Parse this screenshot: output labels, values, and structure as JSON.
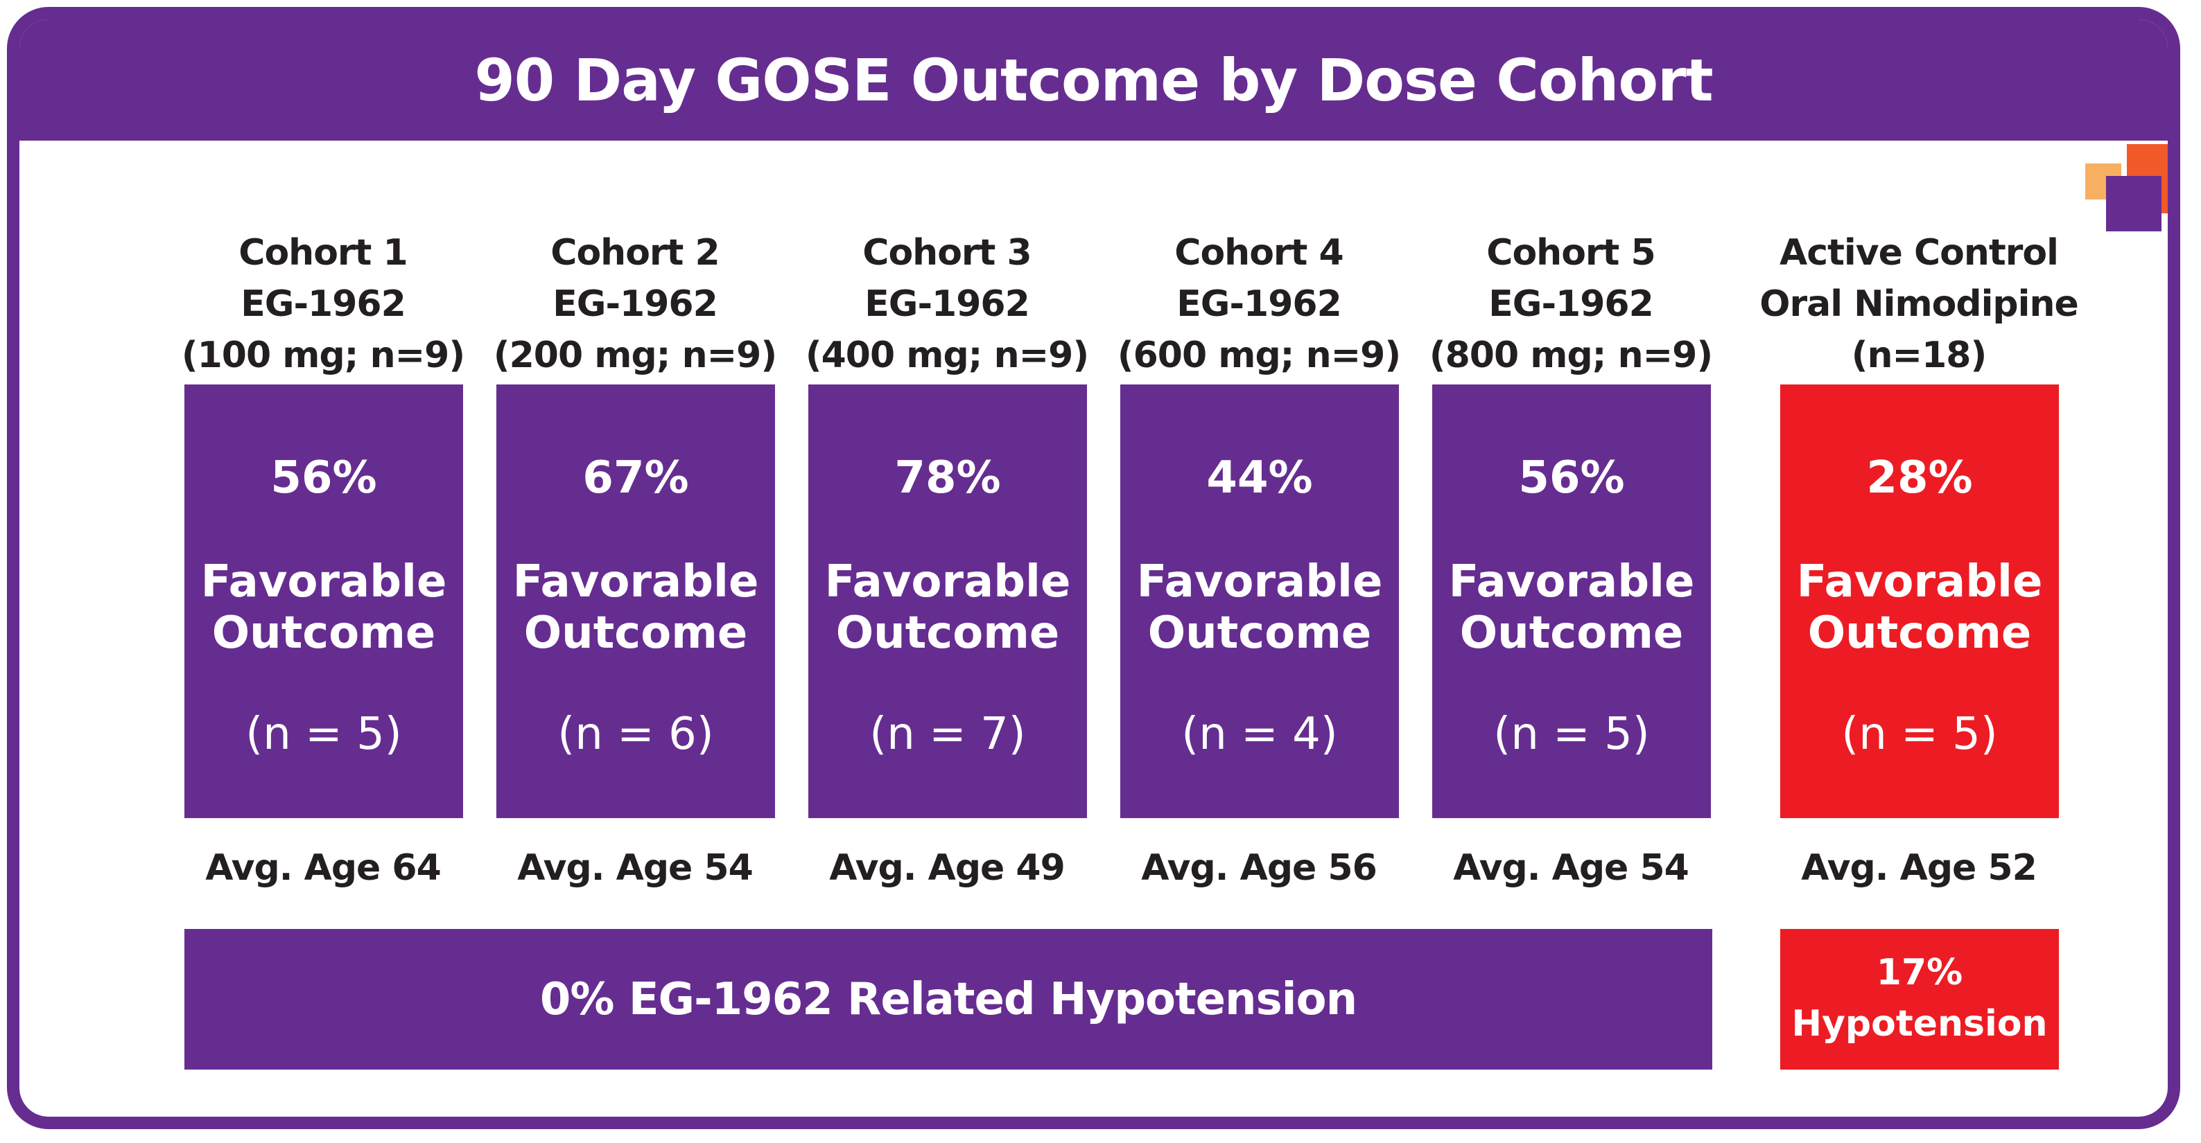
{
  "title": "90 Day GOSE Outcome by Dose Cohort",
  "favorable_label_line1": "Favorable",
  "favorable_label_line2": "Outcome",
  "cohorts": [
    {
      "line1": "Cohort 1",
      "line2": "EG-1962",
      "line3": "(100 mg; n=9)",
      "percent": "56%",
      "n": "(n = 5)",
      "age": "Avg. Age 64"
    },
    {
      "line1": "Cohort 2",
      "line2": "EG-1962",
      "line3": "(200 mg; n=9)",
      "percent": "67%",
      "n": "(n = 6)",
      "age": "Avg. Age 54"
    },
    {
      "line1": "Cohort 3",
      "line2": "EG-1962",
      "line3": "(400 mg; n=9)",
      "percent": "78%",
      "n": "(n = 7)",
      "age": "Avg. Age 49"
    },
    {
      "line1": "Cohort 4",
      "line2": "EG-1962",
      "line3": "(600 mg; n=9)",
      "percent": "44%",
      "n": "(n = 4)",
      "age": "Avg. Age 56"
    },
    {
      "line1": "Cohort 5",
      "line2": "EG-1962",
      "line3": "(800 mg; n=9)",
      "percent": "56%",
      "n": "(n = 5)",
      "age": "Avg. Age 54"
    }
  ],
  "control": {
    "line1": "Active Control",
    "line2": "Oral Nimodipine",
    "line3": "(n=18)",
    "percent": "28%",
    "n": "(n = 5)",
    "age": "Avg. Age 52"
  },
  "hypotension_bar": "0% EG-1962 Related Hypotension",
  "control_hypotension": {
    "line1": "17%",
    "line2": "Hypotension"
  },
  "colors": {
    "purple": "#662d91",
    "red": "#ed1c24",
    "orange": "#f15a29",
    "yellow": "#f7b061"
  },
  "logo": "overlapping-squares-logo"
}
